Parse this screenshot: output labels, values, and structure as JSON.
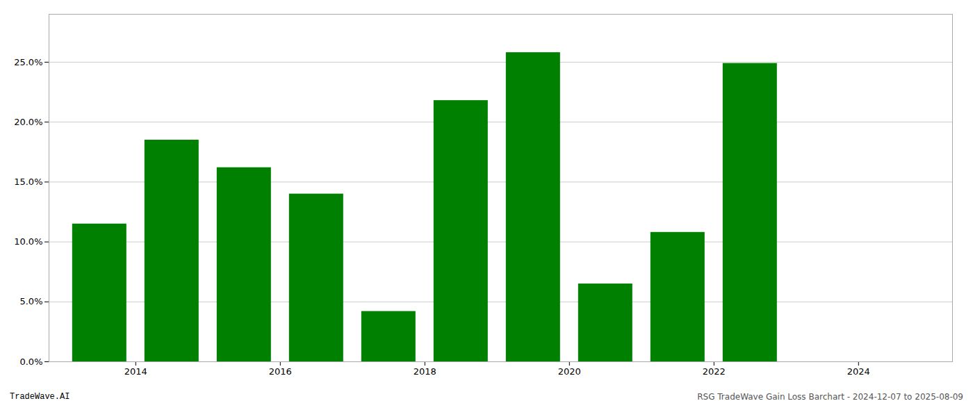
{
  "chart_data": {
    "type": "bar",
    "x": [
      2013,
      2014,
      2015,
      2016,
      2017,
      2018,
      2019,
      2020,
      2021,
      2022,
      2023
    ],
    "values": [
      0.115,
      0.185,
      0.162,
      0.14,
      0.042,
      0.218,
      0.258,
      0.065,
      0.108,
      0.249,
      0.0
    ],
    "color": "#008000",
    "xlim": [
      2012.3,
      2024.8
    ],
    "xticks": [
      {
        "value": 2013.5,
        "label": "2014"
      },
      {
        "value": 2015.5,
        "label": "2016"
      },
      {
        "value": 2017.5,
        "label": "2018"
      },
      {
        "value": 2019.5,
        "label": "2020"
      },
      {
        "value": 2021.5,
        "label": "2022"
      },
      {
        "value": 2023.5,
        "label": "2024"
      }
    ],
    "ylim": [
      0,
      0.29
    ],
    "yticks": [
      {
        "value": 0.0,
        "label": "0.0%"
      },
      {
        "value": 0.05,
        "label": "5.0%"
      },
      {
        "value": 0.1,
        "label": "10.0%"
      },
      {
        "value": 0.15,
        "label": "15.0%"
      },
      {
        "value": 0.2,
        "label": "20.0%"
      },
      {
        "value": 0.25,
        "label": "25.0%"
      }
    ],
    "grid": true,
    "annotations": [
      "TradeWave.AI",
      "RSG TradeWave Gain Loss Barchart - 2024-12-07 to 2025-08-09"
    ]
  }
}
